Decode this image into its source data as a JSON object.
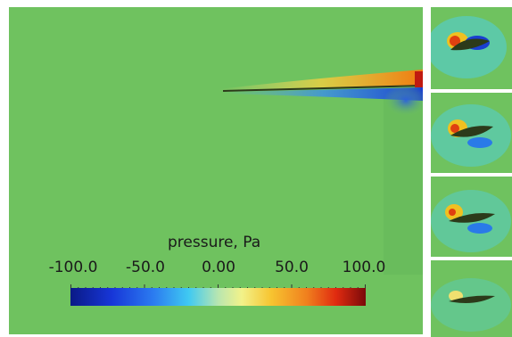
{
  "legend": {
    "title": "pressure, Pa",
    "ticks": [
      "-100.0",
      "-50.0",
      "0.00",
      "50.0",
      "100.0"
    ],
    "min": -100.0,
    "max": 100.0,
    "colormap": [
      "#0a1a86",
      "#1736d8",
      "#2b7bf0",
      "#3fc9f2",
      "#b8e6b0",
      "#f2f28a",
      "#f7c430",
      "#f0801e",
      "#e02a10",
      "#7a0a0a"
    ]
  },
  "colors": {
    "field_background": "#6fc25f",
    "airfoil_dark": "#2c3a1a"
  },
  "thumbnails": [
    "airfoil-frame-1",
    "airfoil-frame-2",
    "airfoil-frame-3",
    "airfoil-frame-4"
  ]
}
